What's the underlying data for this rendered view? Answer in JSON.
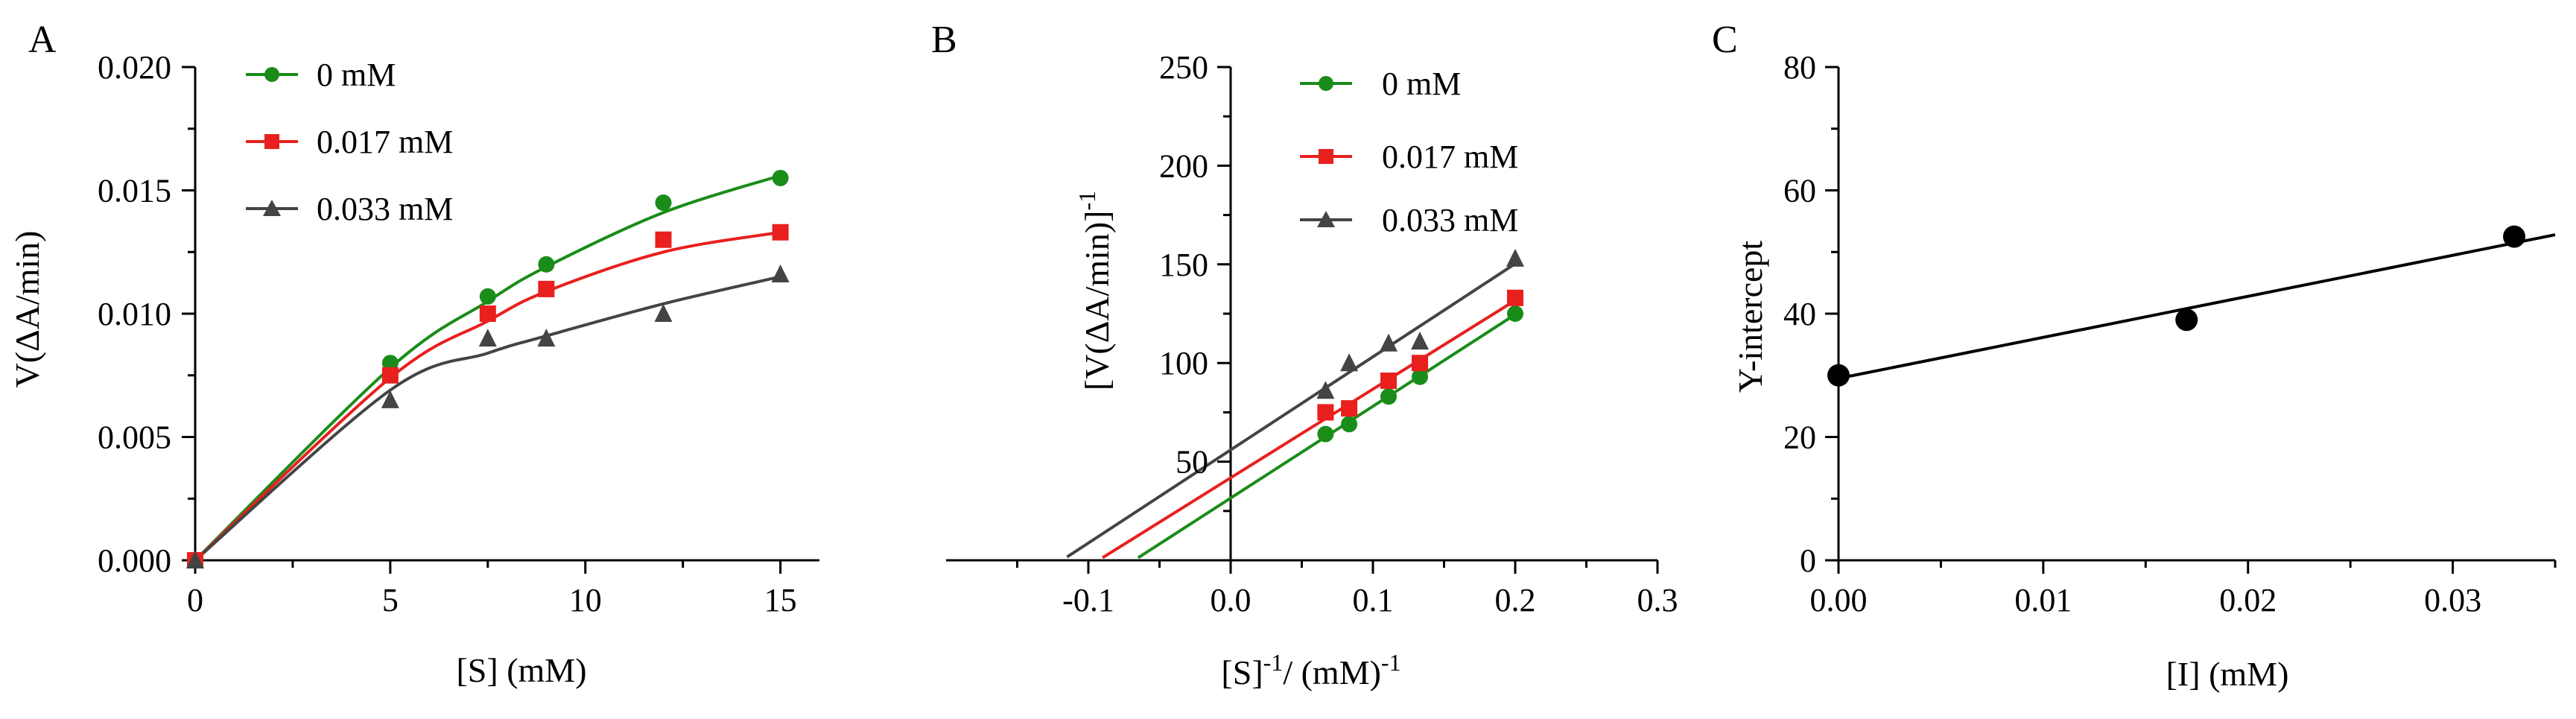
{
  "chart_data": [
    {
      "panel": "A",
      "type": "scatter",
      "xlabel": "[S] (mM)",
      "ylabel": "V(ΔA/min)",
      "xlim": [
        0,
        16
      ],
      "ylim": [
        0,
        0.02
      ],
      "xticks": [
        0,
        5,
        10,
        15
      ],
      "yticks": [
        0.0,
        0.005,
        0.01,
        0.015,
        0.02
      ],
      "ytick_labels": [
        "0.000",
        "0.005",
        "0.010",
        "0.015",
        "0.020"
      ],
      "legend_position": "top-left",
      "fit": "michaelis-menten curve",
      "series": [
        {
          "name": "0 mM",
          "color": "#1a8c1a",
          "marker": "circle",
          "x": [
            0,
            5,
            7.5,
            9,
            12,
            15
          ],
          "y": [
            0,
            0.008,
            0.0107,
            0.012,
            0.0145,
            0.0155
          ],
          "fit_y": [
            0,
            0.0078,
            0.0105,
            0.0119,
            0.0141,
            0.0156
          ]
        },
        {
          "name": "0.017 mM",
          "color": "#e8201e",
          "marker": "square",
          "x": [
            0,
            5,
            7.5,
            9,
            12,
            15
          ],
          "y": [
            0,
            0.0075,
            0.01,
            0.011,
            0.013,
            0.0133
          ],
          "fit_y": [
            0,
            0.0074,
            0.0097,
            0.0109,
            0.0125,
            0.0133
          ]
        },
        {
          "name": "0.033 mM",
          "color": "#444444",
          "marker": "triangle",
          "x": [
            0,
            5,
            7.5,
            9,
            12,
            15
          ],
          "y": [
            0,
            0.0065,
            0.009,
            0.009,
            0.01,
            0.0116
          ],
          "fit_y": [
            0,
            0.0069,
            0.0084,
            0.0091,
            0.0104,
            0.0115
          ]
        }
      ]
    },
    {
      "panel": "B",
      "type": "scatter",
      "xlabel_main": "[S]",
      "xlabel_sup1": "-1",
      "xlabel_mid": "/ (mM)",
      "xlabel_sup2": "-1",
      "ylabel_main": "[V(ΔA/min)]",
      "ylabel_sup": "-1",
      "xlim": [
        -0.2,
        0.3
      ],
      "ylim": [
        0,
        250
      ],
      "xticks": [
        -0.1,
        0.0,
        0.1,
        0.2,
        0.3
      ],
      "xtick_labels": [
        "-0.1",
        "0.0",
        "0.1",
        "0.2",
        "0.3"
      ],
      "yticks": [
        50,
        100,
        150,
        200,
        250
      ],
      "legend_position": "top-right",
      "fit": "lineweaver-burk linear regression",
      "series": [
        {
          "name": "0 mM",
          "color": "#1a8c1a",
          "marker": "circle",
          "x": [
            0.0667,
            0.0833,
            0.111,
            0.133,
            0.2
          ],
          "y": [
            64,
            69,
            83,
            93,
            125
          ],
          "line_x": [
            -0.065,
            0.2
          ]
        },
        {
          "name": "0.017 mM",
          "color": "#e8201e",
          "marker": "square",
          "x": [
            0.0667,
            0.0833,
            0.111,
            0.133,
            0.2
          ],
          "y": [
            75,
            77,
            91,
            100,
            133
          ],
          "line_x": [
            -0.09,
            0.2
          ]
        },
        {
          "name": "0.033 mM",
          "color": "#444444",
          "marker": "triangle",
          "x": [
            0.0667,
            0.0833,
            0.111,
            0.133,
            0.2
          ],
          "y": [
            86,
            100,
            110,
            111,
            153
          ],
          "line_x": [
            -0.115,
            0.2
          ]
        }
      ]
    },
    {
      "panel": "C",
      "type": "scatter",
      "xlabel": "[I] (mM)",
      "ylabel": "Y-intercept",
      "xlim": [
        0,
        0.035
      ],
      "ylim": [
        0,
        80
      ],
      "xticks": [
        0,
        0.01,
        0.02,
        0.03
      ],
      "xtick_labels": [
        "0.00",
        "0.01",
        "0.02",
        "0.03"
      ],
      "yticks": [
        0,
        20,
        40,
        60,
        80
      ],
      "fit": "linear regression",
      "series": [
        {
          "color": "#000000",
          "marker": "circle",
          "x": [
            0,
            0.017,
            0.033
          ],
          "y": [
            30,
            39,
            52.5
          ],
          "line": {
            "x": [
              0,
              0.035
            ],
            "y": [
              29.5,
              52.8
            ]
          }
        }
      ]
    }
  ]
}
